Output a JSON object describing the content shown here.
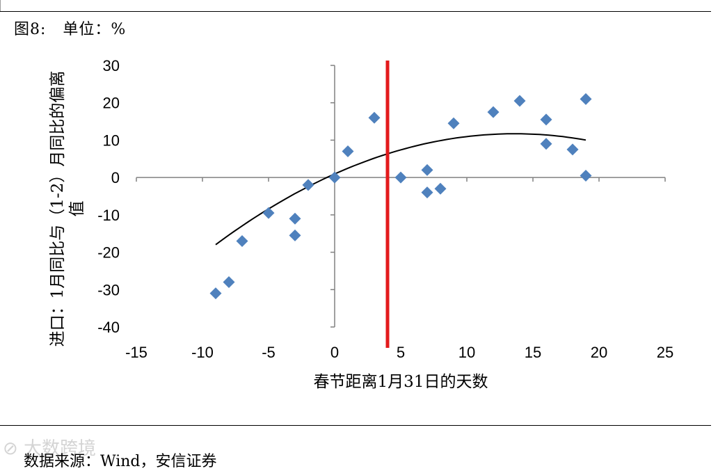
{
  "figure": {
    "label": "图8:   单位：%",
    "source": "数据来源：Wind，安信证券",
    "watermark": "⊘ 大数跨境"
  },
  "colors": {
    "marker": "#4f81bd",
    "trend": "#000000",
    "reference_line": "#e31a1c",
    "axis": "#808080"
  },
  "chart_data": {
    "type": "scatter",
    "title": "",
    "xlabel": "春节距离1月31日的天数",
    "ylabel": "进口：1月同比与（1-2）月同比的偏离值",
    "xlim": [
      -15,
      25
    ],
    "ylim": [
      -40,
      30
    ],
    "x_ticks": [
      -15,
      -10,
      -5,
      0,
      5,
      10,
      15,
      20,
      25
    ],
    "y_ticks": [
      -40,
      -30,
      -20,
      -10,
      0,
      10,
      20,
      30
    ],
    "grid": false,
    "legend": "none",
    "marker": "diamond",
    "series": [
      {
        "points": [
          [
            -9,
            -31
          ],
          [
            -8,
            -28
          ],
          [
            -7,
            -17
          ],
          [
            -5,
            -9.5
          ],
          [
            -3,
            -11
          ],
          [
            -3,
            -15.5
          ],
          [
            -2,
            -2
          ],
          [
            0,
            0
          ],
          [
            1,
            7
          ],
          [
            3,
            16
          ],
          [
            5,
            0
          ],
          [
            7,
            2
          ],
          [
            7,
            -4
          ],
          [
            8,
            -3
          ],
          [
            9,
            14.5
          ],
          [
            12,
            17.5
          ],
          [
            14,
            20.5
          ],
          [
            16,
            15.5
          ],
          [
            16,
            9
          ],
          [
            18,
            7.5
          ],
          [
            19,
            21
          ],
          [
            19,
            0.5
          ]
        ]
      }
    ],
    "trendline": {
      "type": "polynomial",
      "coefficients": [
        0.95,
        1.58,
        -0.058
      ],
      "x_range": [
        -9,
        19
      ]
    },
    "reference_line": {
      "x": 4
    }
  }
}
